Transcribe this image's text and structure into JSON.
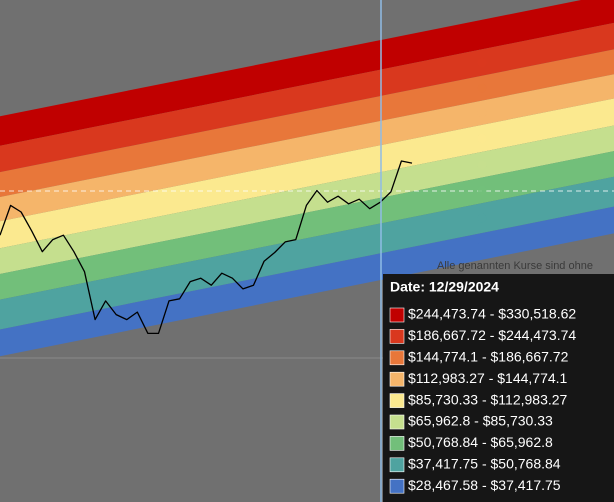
{
  "chart_data": {
    "type": "line",
    "log_scale": true,
    "background": "#707070",
    "series": [
      {
        "color": "#000000",
        "values": [
          45000,
          61000,
          57000,
          47000,
          38000,
          43000,
          45000,
          38000,
          31000,
          19000,
          23000,
          20000,
          19000,
          20500,
          16500,
          16500,
          23000,
          23500,
          28000,
          29000,
          27000,
          30500,
          29000,
          26000,
          27000,
          34500,
          37700,
          42000,
          43000,
          61000,
          71000,
          63000,
          67000,
          62000,
          65000,
          59000,
          63000,
          70000,
          96000,
          94000
        ]
      }
    ],
    "footnote": "Alle genannten Kurse sind ohne",
    "tooltip": {
      "title": "Date: 12/29/2024",
      "bands": [
        {
          "label": "$244,473.74 - $330,518.62",
          "low": 244473.74,
          "high": 330518.62,
          "color": "#c00000"
        },
        {
          "label": "$186,667.72 - $244,473.74",
          "low": 186667.72,
          "high": 244473.74,
          "color": "#d9381e"
        },
        {
          "label": "$144,774.1 - $186,667.72",
          "low": 144774.1,
          "high": 186667.72,
          "color": "#e8773a"
        },
        {
          "label": "$112,983.27 - $144,774.1",
          "low": 112983.27,
          "high": 144774.1,
          "color": "#f5b56a"
        },
        {
          "label": "$85,730.33 - $112,983.27",
          "low": 85730.33,
          "high": 112983.27,
          "color": "#fbe98f"
        },
        {
          "label": "$65,962.8 - $85,730.33",
          "low": 65962.8,
          "high": 85730.33,
          "color": "#c5df8e"
        },
        {
          "label": "$50,768.84 - $65,962.8",
          "low": 50768.84,
          "high": 65962.8,
          "color": "#72bf7a"
        },
        {
          "label": "$37,417.75 - $50,768.84",
          "low": 37417.75,
          "high": 50768.84,
          "color": "#4fa3a0"
        },
        {
          "label": "$28,467.58 - $37,417.75",
          "low": 28467.58,
          "high": 37417.75,
          "color": "#4472c4"
        }
      ]
    }
  }
}
